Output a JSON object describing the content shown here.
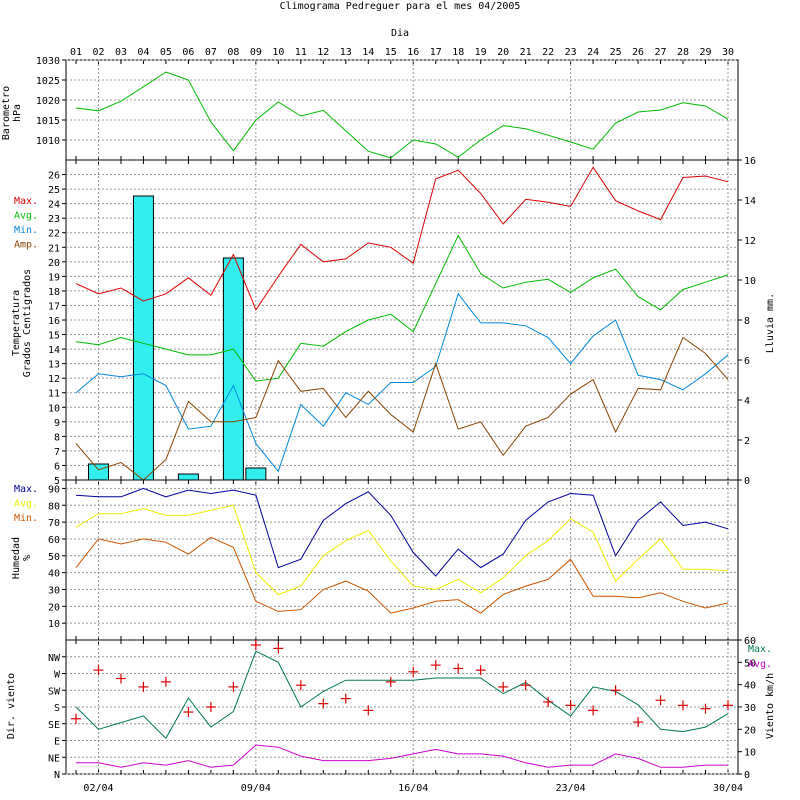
{
  "colors": {
    "red": "#dd0000",
    "green": "#00bb00",
    "blue": "#0088dd",
    "brown": "#884400",
    "navy": "#000099",
    "yellow": "#eeee00",
    "orange": "#cc5500",
    "teal": "#007755",
    "magenta": "#cc00cc",
    "cyan": "#33eeee",
    "grid": "#999999"
  },
  "chart_data": [
    {
      "type": "line",
      "id": "barometer",
      "title": "Climograma Pedreguer para el mes 04/2005",
      "top_axis_label": "Dia",
      "days": [
        "01",
        "02",
        "03",
        "04",
        "05",
        "06",
        "07",
        "08",
        "09",
        "10",
        "11",
        "12",
        "13",
        "14",
        "15",
        "16",
        "17",
        "18",
        "19",
        "20",
        "21",
        "22",
        "23",
        "24",
        "25",
        "26",
        "27",
        "28",
        "29",
        "30"
      ],
      "ylabel_lines": [
        "Barometro",
        "hPa"
      ],
      "ylim": [
        1005,
        1030
      ],
      "yticks": [
        1010,
        1015,
        1020,
        1025,
        1030
      ],
      "series": [
        {
          "name": "",
          "color_key": "green",
          "values": [
            1018,
            1017.3,
            1019.7,
            1023.3,
            1027,
            1025,
            1014.5,
            1007.3,
            1015,
            1019.5,
            1016,
            1017.4,
            1012.3,
            1007.2,
            1005.5,
            1010,
            1009,
            1005.7,
            1010,
            1013.6,
            1012.8,
            1011.2,
            1009.5,
            1007.7,
            1014.2,
            1017,
            1017.5,
            1019.3,
            1018.5,
            1015.2
          ]
        }
      ]
    },
    {
      "type": "line",
      "id": "temperature",
      "ylabel_lines": [
        "Temperatura",
        "Grados Centigrados"
      ],
      "y2label": "Lluvia mm.",
      "ylim": [
        5,
        27
      ],
      "yticks": [
        5,
        6,
        7,
        8,
        9,
        10,
        11,
        12,
        13,
        14,
        15,
        16,
        17,
        18,
        19,
        20,
        21,
        22,
        23,
        24,
        25,
        26
      ],
      "y2lim": [
        0,
        16
      ],
      "y2ticks": [
        0,
        2,
        4,
        6,
        8,
        10,
        12,
        14,
        16
      ],
      "legend": [
        {
          "label": "Max.",
          "color_key": "red"
        },
        {
          "label": "Avg.",
          "color_key": "green"
        },
        {
          "label": "Min.",
          "color_key": "blue"
        },
        {
          "label": "Amp.",
          "color_key": "brown"
        }
      ],
      "series": [
        {
          "name": "Max.",
          "color_key": "red",
          "values": [
            18.5,
            17.8,
            18.2,
            17.3,
            17.8,
            18.9,
            17.7,
            20.5,
            16.7,
            19,
            21.2,
            20,
            20.2,
            21.3,
            21,
            19.9,
            25.7,
            26.3,
            24.7,
            22.6,
            24.3,
            24.1,
            23.8,
            26.5,
            24.2,
            23.5,
            22.9,
            25.8,
            25.9,
            25.5
          ]
        },
        {
          "name": "Avg.",
          "color_key": "green",
          "values": [
            14.5,
            14.3,
            14.8,
            14.4,
            14,
            13.6,
            13.6,
            14,
            11.8,
            12,
            14.4,
            14.2,
            15.2,
            16,
            16.4,
            15.2,
            18.5,
            21.8,
            19.2,
            18.2,
            18.6,
            18.8,
            17.9,
            18.9,
            19.5,
            17.6,
            16.7,
            18.1,
            18.6,
            19.1
          ]
        },
        {
          "name": "Min.",
          "color_key": "blue",
          "values": [
            11,
            12.3,
            12.1,
            12.3,
            11.5,
            8.5,
            8.7,
            11.5,
            7.5,
            5.6,
            10.2,
            8.7,
            11,
            10.2,
            11.7,
            11.7,
            12.8,
            17.8,
            15.8,
            15.8,
            15.6,
            14.8,
            13,
            14.9,
            16,
            12.2,
            11.9,
            11.2,
            12.3,
            13.6
          ]
        },
        {
          "name": "Amp.",
          "color_key": "brown",
          "values": [
            7.5,
            5.7,
            6.2,
            5,
            6.4,
            10.4,
            9,
            9,
            9.3,
            13.2,
            11.1,
            11.3,
            9.3,
            11.1,
            9.5,
            8.3,
            13,
            8.5,
            9,
            6.7,
            8.7,
            9.3,
            10.9,
            11.9,
            8.3,
            11.3,
            11.2,
            14.8,
            13.7,
            11.9
          ]
        },
        {
          "name": "Lluvia mm.",
          "type": "bar",
          "axis": "y2",
          "color_key": "cyan",
          "values": [
            0,
            0.8,
            0,
            14.2,
            0,
            0.3,
            0,
            11.1,
            0.6,
            0,
            0,
            0,
            0,
            0,
            0,
            0,
            0,
            0,
            0,
            0,
            0,
            0,
            0,
            0,
            0,
            0,
            0,
            0,
            0,
            0
          ]
        }
      ]
    },
    {
      "type": "line",
      "id": "humidity",
      "ylabel_lines": [
        "Humedad",
        "%"
      ],
      "ylim": [
        0,
        95
      ],
      "yticks": [
        10,
        20,
        30,
        40,
        50,
        60,
        70,
        80,
        90
      ],
      "legend": [
        {
          "label": "Max.",
          "color_key": "navy"
        },
        {
          "label": "Avg.",
          "color_key": "yellow"
        },
        {
          "label": "Min.",
          "color_key": "orange"
        }
      ],
      "series": [
        {
          "name": "Max.",
          "color_key": "navy",
          "values": [
            86,
            85,
            85,
            90,
            85,
            89,
            87,
            89,
            86,
            43,
            48,
            71,
            81,
            88,
            74,
            52,
            38,
            54,
            43,
            51,
            71,
            82,
            87,
            86,
            50,
            71,
            82,
            68,
            70,
            66
          ]
        },
        {
          "name": "Avg.",
          "color_key": "yellow",
          "values": [
            67,
            75,
            75,
            78,
            74,
            74,
            77,
            80,
            40,
            27,
            32,
            50,
            59,
            65,
            47,
            32,
            30,
            36,
            28,
            37,
            50,
            59,
            72,
            64,
            35,
            48,
            60,
            42,
            42,
            41
          ]
        },
        {
          "name": "Min.",
          "color_key": "orange",
          "values": [
            43,
            60,
            57,
            60,
            58,
            51,
            61,
            55,
            23,
            17,
            18,
            30,
            35,
            29,
            16,
            19,
            23,
            24,
            16,
            27,
            32,
            36,
            48,
            26,
            26,
            25,
            28,
            23,
            19,
            22
          ]
        }
      ]
    },
    {
      "type": "scatter",
      "id": "wind",
      "ylabel": "Dir. viento",
      "y2label": "Viento km/h",
      "direction_ticks": [
        "N",
        "NE",
        "E",
        "SE",
        "S",
        "SW",
        "W",
        "NW"
      ],
      "ylim": [
        0,
        8
      ],
      "y2lim": [
        0,
        60
      ],
      "y2ticks": [
        0,
        10,
        20,
        30,
        40,
        50,
        60
      ],
      "x_tick_labels": [
        {
          "day_index": 1,
          "label": "02/04"
        },
        {
          "day_index": 8,
          "label": "09/04"
        },
        {
          "day_index": 15,
          "label": "16/04"
        },
        {
          "day_index": 22,
          "label": "23/04"
        },
        {
          "day_index": 29,
          "label": "30/04"
        }
      ],
      "legend": [
        {
          "label": "Max.",
          "color_key": "teal"
        },
        {
          "label": "Avg.",
          "color_key": "magenta"
        }
      ],
      "direction_values": [
        3.3,
        6.2,
        5.7,
        5.2,
        5.5,
        3.7,
        4,
        5.2,
        7.7,
        7.5,
        5.3,
        4.2,
        4.5,
        3.8,
        5.5,
        6.1,
        6.5,
        6.3,
        6.2,
        5.2,
        5.3,
        4.3,
        4.1,
        3.8,
        5,
        3.1,
        4.4,
        4.1,
        3.9,
        4.1
      ],
      "series": [
        {
          "name": "Max.",
          "color_key": "teal",
          "values": [
            30,
            20,
            23,
            26,
            16,
            34,
            21,
            28,
            55,
            50,
            30,
            37,
            42,
            42,
            42,
            42,
            43,
            43,
            43,
            36,
            41,
            33,
            26,
            39,
            37,
            31,
            20,
            19,
            21,
            27
          ]
        },
        {
          "name": "Avg.",
          "color_key": "magenta",
          "values": [
            5,
            5,
            3,
            5,
            4,
            6,
            3,
            4,
            13,
            12,
            8,
            6,
            6,
            6,
            7,
            9,
            11,
            9,
            9,
            8,
            5,
            3,
            4,
            4,
            9,
            7,
            3,
            3,
            4,
            4
          ]
        }
      ]
    }
  ]
}
